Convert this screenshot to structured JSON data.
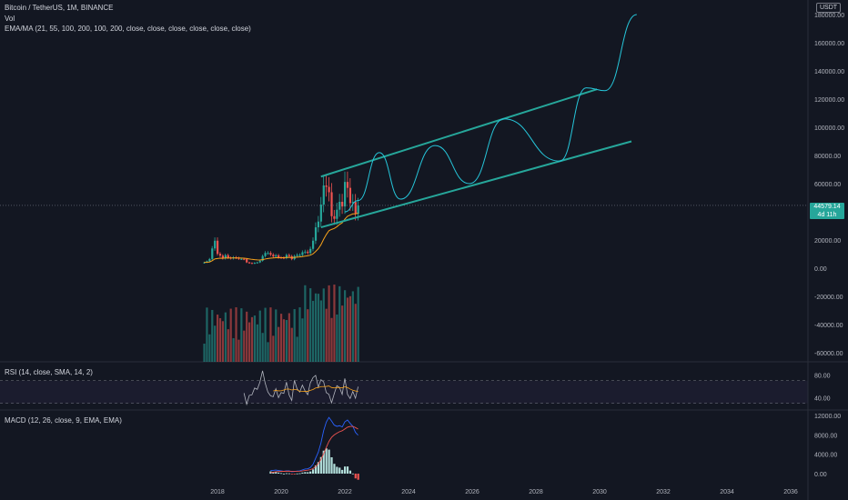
{
  "legend": {
    "symbol": "Bitcoin / TetherUS, 1M, BINANCE",
    "volume": "Vol",
    "ema": "EMA/MA (21, 55, 100, 200, 100, 200, close, close, close, close, close, close)"
  },
  "rsi_label": "RSI (14, close, SMA, 14, 2)",
  "macd_label": "MACD (12, 26, close, 9, EMA, EMA)",
  "currency": "USDT",
  "last_price": "44579.14",
  "countdown": "4d 11h",
  "colors": {
    "bg": "#131722",
    "up": "#26a69a",
    "down": "#ef5350",
    "channel": "#26a69a",
    "ema": "#f7a21b",
    "rsi": "#b2b5be",
    "rsi_sma": "#f7a21b",
    "macd": "#2962ff",
    "signal": "#ef5350"
  },
  "chart_data": [
    {
      "type": "candlestick",
      "x_ticks": [
        "2018",
        "2020",
        "2022",
        "2024",
        "2026",
        "2028",
        "2030",
        "2032",
        "2034",
        "2036"
      ],
      "y_ticks": [
        "180000.00",
        "160000.00",
        "140000.00",
        "120000.00",
        "100000.00",
        "80000.00",
        "60000.00",
        "20000.00",
        "0.00",
        "-20000.00",
        "-40000.00",
        "-60000.00"
      ],
      "ylim": [
        -68000,
        192000
      ],
      "channel": {
        "upper": [
          [
            "2021-04",
            65000
          ],
          [
            "2029-12",
            127000
          ]
        ],
        "lower": [
          [
            "2021-04",
            29000
          ],
          [
            "2031-01",
            90000
          ]
        ]
      },
      "projection": [
        [
          "2022-01",
          40000
        ],
        [
          "2022-06",
          48000
        ],
        [
          "2023-02",
          82000
        ],
        [
          "2023-10",
          49000
        ],
        [
          "2024-11",
          87000
        ],
        [
          "2025-12",
          60000
        ],
        [
          "2027-01",
          106000
        ],
        [
          "2028-10",
          76000
        ],
        [
          "2029-08",
          128000
        ],
        [
          "2030-03",
          126000
        ],
        [
          "2031-03",
          180000
        ]
      ],
      "monthly_close": [
        4100,
        4900,
        6500,
        14000,
        19500,
        10200,
        8900,
        6900,
        9200,
        7400,
        7000,
        7700,
        7300,
        6600,
        6600,
        6400,
        4100,
        3700,
        3400,
        3800,
        4100,
        5300,
        8600,
        10800,
        10800,
        9600,
        8300,
        9100,
        7600,
        7500,
        7200,
        9300,
        8500,
        6400,
        8600,
        9400,
        9400,
        11300,
        11700,
        10800,
        13700,
        19500,
        29000,
        33100,
        45100,
        58700,
        57700,
        53900,
        36900,
        35000,
        41500,
        47100,
        43800,
        61200,
        57000,
        46200,
        47000,
        38500,
        44579
      ]
    },
    {
      "type": "line",
      "name": "RSI",
      "y_ticks": [
        "80.00",
        "40.00"
      ],
      "ylim": [
        20,
        100
      ]
    },
    {
      "type": "line",
      "name": "MACD",
      "y_ticks": [
        "12000.00",
        "8000.00",
        "4000.00",
        "0.00"
      ],
      "ylim": [
        -1000,
        12500
      ]
    }
  ]
}
